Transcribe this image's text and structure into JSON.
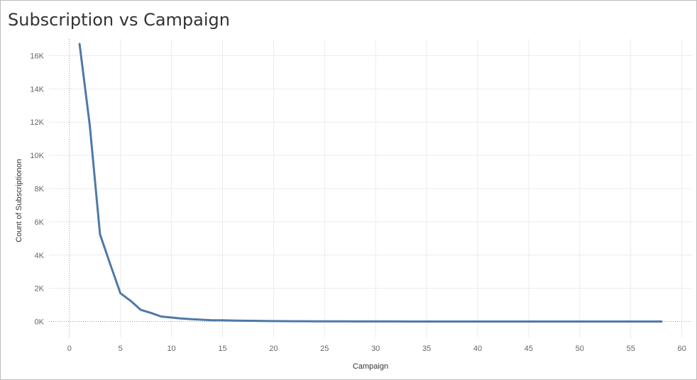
{
  "title": "Subscription vs Campaign",
  "chart_data": {
    "type": "line",
    "title": "Subscription vs Campaign",
    "xlabel": "Campaign",
    "ylabel": "Count of Subscriptionon",
    "xlim": [
      -2,
      61
    ],
    "ylim": [
      -1000,
      17000
    ],
    "x_ticks": [
      0,
      5,
      10,
      15,
      20,
      25,
      30,
      35,
      40,
      45,
      50,
      55,
      60
    ],
    "y_ticks": [
      0,
      2000,
      4000,
      6000,
      8000,
      10000,
      12000,
      14000,
      16000
    ],
    "y_tick_labels": [
      "0K",
      "2K",
      "4K",
      "6K",
      "8K",
      "10K",
      "12K",
      "14K",
      "16K"
    ],
    "grid": true,
    "line_color": "#4e79a7",
    "series": [
      {
        "x": [
          1,
          2,
          3,
          4,
          5,
          6,
          7,
          8,
          9,
          10,
          11,
          12,
          13,
          14,
          15,
          16,
          17,
          18,
          19,
          20,
          21,
          22,
          23,
          24,
          25,
          26,
          27,
          28,
          29,
          30,
          31,
          32,
          33,
          34,
          35,
          36,
          37,
          38,
          39,
          40,
          41,
          42,
          43,
          44,
          45,
          46,
          47,
          48,
          49,
          50,
          51,
          52,
          53,
          54,
          55,
          56,
          57,
          58
        ],
        "values": [
          16700,
          11800,
          5250,
          3450,
          1700,
          1250,
          700,
          520,
          300,
          240,
          180,
          140,
          110,
          80,
          75,
          60,
          50,
          45,
          35,
          30,
          25,
          20,
          18,
          15,
          12,
          10,
          9,
          8,
          7,
          6,
          5,
          5,
          4,
          4,
          3,
          3,
          3,
          2,
          2,
          2,
          2,
          1,
          1,
          1,
          1,
          1,
          1,
          1,
          1,
          1,
          1,
          1,
          1,
          1,
          1,
          1,
          1,
          1
        ]
      }
    ]
  }
}
